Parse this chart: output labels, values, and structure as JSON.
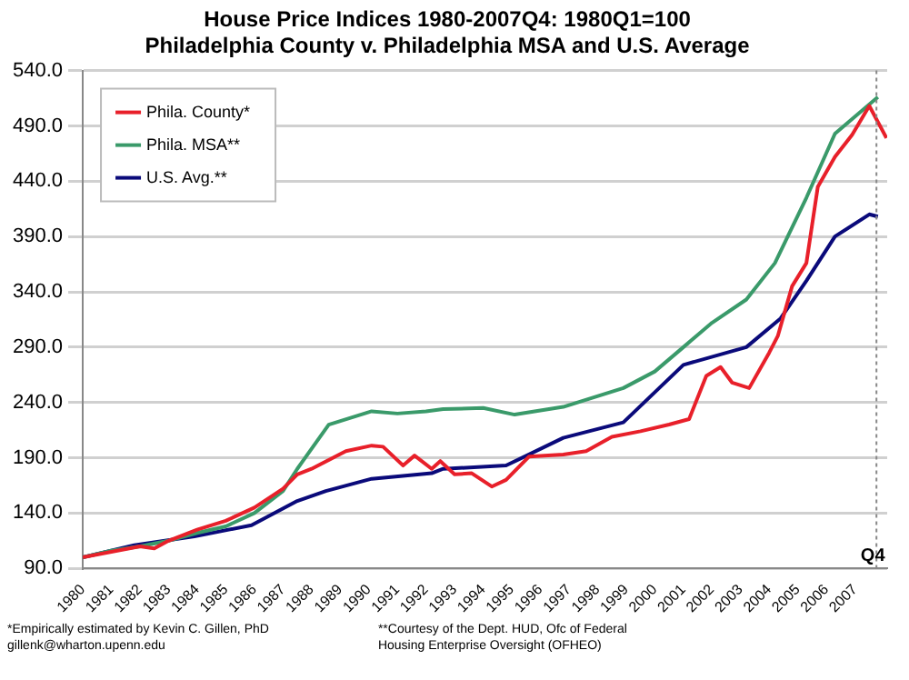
{
  "chart_data": {
    "type": "line",
    "title": "House Price Indices 1980-2007Q4: 1980Q1=100",
    "subtitle": "Philadelphia County v. Philadelphia MSA and U.S. Average",
    "series": [
      {
        "name": "Phila. County*",
        "color": "#e8202a",
        "x": [
          1980,
          1981,
          1982,
          1982.5,
          1983,
          1984,
          1985,
          1986,
          1987,
          1987.5,
          1988,
          1989.2,
          1990.1,
          1990.5,
          1991.2,
          1991.6,
          1992.2,
          1992.5,
          1993,
          1993.6,
          1994.3,
          1994.8,
          1995.6,
          1996.8,
          1997.6,
          1998.5,
          1999.5,
          2000.5,
          2001.2,
          2001.8,
          2002.3,
          2002.7,
          2003.3,
          2004,
          2004.3,
          2004.8,
          2005.3,
          2005.7,
          2006.3,
          2006.9,
          2007.5,
          2008.1
        ],
        "values": [
          100,
          105,
          110,
          108,
          115,
          125,
          133,
          145,
          162,
          175,
          180,
          196,
          201,
          200,
          183,
          192,
          180,
          187,
          175,
          176,
          164,
          170,
          191,
          193,
          196,
          209,
          214,
          220,
          225,
          264,
          272,
          258,
          253,
          285,
          300,
          345,
          366,
          435,
          462,
          482,
          508,
          479
        ]
      },
      {
        "name": "Phila. MSA**",
        "color": "#3a9a6a",
        "x": [
          1980,
          1981,
          1982,
          1983,
          1984,
          1985,
          1986,
          1987,
          1987.5,
          1988.6,
          1990.1,
          1991,
          1992,
          1992.6,
          1994,
          1995.1,
          1996.8,
          1998.9,
          2000,
          2001,
          2002,
          2003.2,
          2004.2,
          2005.3,
          2006.3,
          2007.8
        ],
        "values": [
          100,
          106,
          110,
          115,
          122,
          128,
          140,
          160,
          180,
          220,
          232,
          230,
          232,
          234,
          235,
          229,
          236,
          253,
          268,
          290,
          312,
          333,
          366,
          425,
          483,
          516
        ]
      },
      {
        "name": "U.S. Avg.**",
        "color": "#0a0a7a",
        "x": [
          1980,
          1981.8,
          1983.9,
          1985.9,
          1987.5,
          1988.5,
          1990.1,
          1992.2,
          1992.6,
          1994.8,
          1996.8,
          1998.9,
          2001,
          2003.2,
          2004.4,
          2005.3,
          2006.3,
          2007.5,
          2007.8
        ],
        "values": [
          100,
          111,
          119,
          129,
          151,
          160,
          171,
          176,
          180,
          183,
          208,
          222,
          274,
          290,
          316,
          350,
          390,
          410,
          408
        ]
      }
    ],
    "xlim": [
      1980,
      2008.125
    ],
    "xticks": [
      1980,
      1981,
      1982,
      1983,
      1984,
      1985,
      1986,
      1987,
      1988,
      1989,
      1990,
      1991,
      1992,
      1993,
      1994,
      1995,
      1996,
      1997,
      1998,
      1999,
      2000,
      2001,
      2002,
      2003,
      2004,
      2005,
      2006,
      2007
    ],
    "ylim": [
      90,
      540
    ],
    "yticks": [
      {
        "value": 90,
        "label": "90.0"
      },
      {
        "value": 140,
        "label": "140.0"
      },
      {
        "value": 190,
        "label": "190.0"
      },
      {
        "value": 240,
        "label": "240.0"
      },
      {
        "value": 290,
        "label": "290.0"
      },
      {
        "value": 340,
        "label": "340.0"
      },
      {
        "value": 390,
        "label": "390.0"
      },
      {
        "value": 440,
        "label": "440.0"
      },
      {
        "value": 490,
        "label": "490.0"
      },
      {
        "value": 540,
        "label": "540.0"
      }
    ],
    "ref_lines": [
      {
        "axis": "x",
        "value": 2007.75,
        "label": "Q4",
        "color": "#888888",
        "line_style": "dotted"
      }
    ],
    "annotations": [
      "*Empirically estimated by Kevin C. Gillen, PhD\ngillenk@wharton.upenn.edu",
      "**Courtesy of the Dept. HUD, Ofc of Federal\nHousing Enterprise Oversight (OFHEO)"
    ],
    "grid": "y",
    "legend": "top left",
    "marker": "none",
    "line_style": "solid"
  }
}
